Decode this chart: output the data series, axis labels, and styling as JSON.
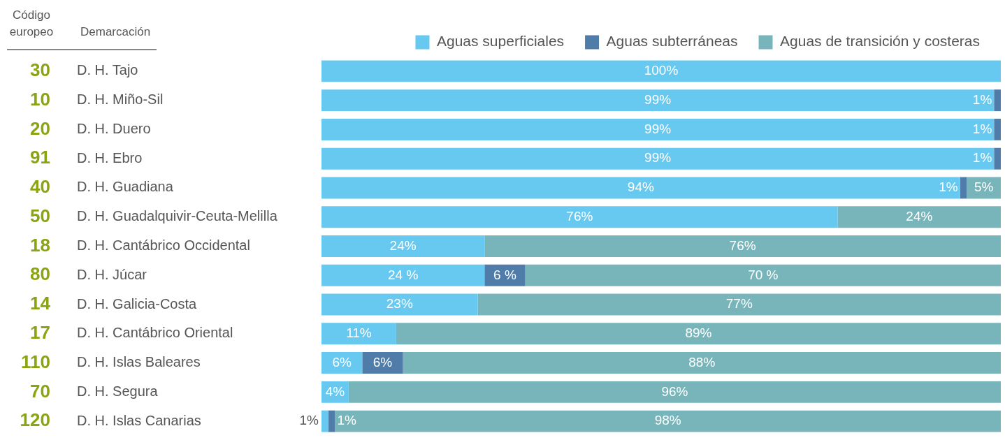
{
  "chart_data": {
    "type": "bar",
    "orientation": "horizontal",
    "stacked": true,
    "legend": "top right",
    "ylabel": "Demarcación",
    "categories": [
      "D. H. Tajo",
      "D. H. Miño-Sil",
      "D. H. Duero",
      "D. H. Ebro",
      "D. H. Guadiana",
      "D. H. Guadalquivir-Ceuta-Melilla",
      "D. H. Cantábrico Occidental",
      "D. H. Júcar",
      "D. H. Galicia-Costa",
      "D. H. Cantábrico Oriental",
      "D. H. Islas Baleares",
      "D. H. Segura",
      "D. H. Islas Canarias"
    ],
    "annotations": [
      "Código europeo",
      "30",
      "10",
      "20",
      "91",
      "40",
      "50",
      "18",
      "80",
      "14",
      "17",
      "110",
      "70",
      "120"
    ],
    "series": [
      {
        "name": "Aguas superficiales",
        "color": "#67c8f0",
        "values": [
          100,
          99,
          99,
          99,
          94,
          76,
          24,
          24,
          23,
          11,
          6,
          4,
          1
        ],
        "value_labels": [
          "100%",
          "99%",
          "99%",
          "99%",
          "94%",
          "76%",
          "24%",
          "24 %",
          "23%",
          "11%",
          "6%",
          "4%",
          "1%"
        ]
      },
      {
        "name": "Aguas subterráneas",
        "color": "#4f7ca8",
        "values": [
          null,
          1,
          1,
          1,
          1,
          null,
          null,
          6,
          null,
          null,
          6,
          null,
          1
        ],
        "value_labels": [
          null,
          "1%",
          "1%",
          "1%",
          "1%",
          null,
          null,
          "6 %",
          null,
          null,
          "6%",
          null,
          "1%"
        ]
      },
      {
        "name": "Aguas de transición y costeras",
        "color": "#78b5bb",
        "values": [
          null,
          null,
          null,
          null,
          5,
          24,
          76,
          70,
          77,
          89,
          88,
          96,
          98
        ],
        "value_labels": [
          null,
          null,
          null,
          null,
          "5%",
          "24%",
          "76%",
          "70 %",
          "77%",
          "89%",
          "88%",
          "96%",
          "98%"
        ]
      }
    ]
  }
}
